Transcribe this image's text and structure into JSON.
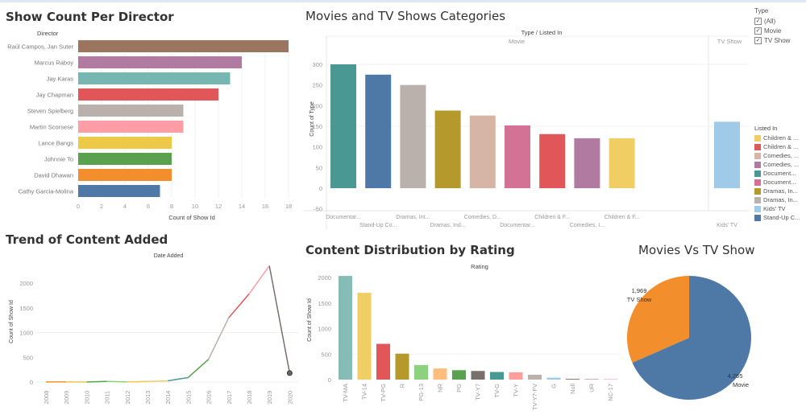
{
  "titles": {
    "director": "Show Count Per Director",
    "categories": "Movies and TV Shows Categories",
    "trend": "Trend of Content Added",
    "rating": "Content Distribution by Rating",
    "pie": "Movies Vs TV Show"
  },
  "type_filter": {
    "label": "Type",
    "options": [
      {
        "label": "(All)",
        "checked": true
      },
      {
        "label": "Movie",
        "checked": true
      },
      {
        "label": "TV Show",
        "checked": true
      }
    ]
  },
  "listed_in_legend": {
    "label": "Listed In",
    "items": [
      {
        "label": "Children & ...",
        "color": "#f1ce63"
      },
      {
        "label": "Children & ...",
        "color": "#e15759"
      },
      {
        "label": "Comedies, ...",
        "color": "#d7b5a6"
      },
      {
        "label": "Comedies, ...",
        "color": "#b07aa1"
      },
      {
        "label": "Document...",
        "color": "#499894"
      },
      {
        "label": "Document...",
        "color": "#d37295"
      },
      {
        "label": "Dramas, In...",
        "color": "#b6992d"
      },
      {
        "label": "Dramas, In...",
        "color": "#bab0ac"
      },
      {
        "label": "Kids' TV",
        "color": "#a0cbe8"
      },
      {
        "label": "Stand-Up C...",
        "color": "#4e79a7"
      }
    ]
  },
  "chart_data": [
    {
      "type": "bar",
      "orientation": "horizontal",
      "title": "Show Count Per Director",
      "ylabel": "Director",
      "xlabel": "Count of Show Id",
      "xlim": [
        0,
        18
      ],
      "xticks": [
        "0",
        "2",
        "4",
        "6",
        "8",
        "10",
        "12",
        "14",
        "16",
        "18"
      ],
      "categories": [
        "Raúl Campos, Jan Suter",
        "Marcus Raboy",
        "Jay Karas",
        "Jay Chapman",
        "Steven Spielberg",
        "Martin Scorsese",
        "Lance Bangs",
        "Johnnie To",
        "David Dhawan",
        "Cathy Garcia-Molina"
      ],
      "values": [
        18,
        14,
        13,
        12,
        9,
        9,
        8,
        8,
        8,
        7
      ],
      "colors": [
        "#9c755f",
        "#b07aa1",
        "#76b7b2",
        "#e15759",
        "#bab0ac",
        "#ff9da7",
        "#edc948",
        "#59a14f",
        "#f28e2b",
        "#4e79a7"
      ]
    },
    {
      "type": "bar",
      "title": "Movies and TV Shows Categories",
      "header": "Type / Listed In",
      "groups": [
        {
          "name": "Movie",
          "count": 9
        },
        {
          "name": "TV Show",
          "count": 1
        }
      ],
      "ylabel": "Count of Type",
      "ylim": [
        -50,
        300
      ],
      "yticks": [
        "300",
        "250",
        "200",
        "150",
        "100",
        "50",
        "0",
        "-50"
      ],
      "categories": [
        "Documentar...",
        "Stand-Up Co...",
        "Dramas, Int...",
        "Dramas, Ind...",
        "Comedies, D...",
        "Documentar...",
        "Children & F...",
        "Comedies, I...",
        "Children & F...",
        "Kids' TV"
      ],
      "values": [
        300,
        275,
        250,
        188,
        176,
        152,
        131,
        121,
        121,
        161
      ],
      "colors": [
        "#499894",
        "#4e79a7",
        "#bab0ac",
        "#b6992d",
        "#d7b5a6",
        "#d37295",
        "#e15759",
        "#b07aa1",
        "#f1ce63",
        "#a0cbe8"
      ]
    },
    {
      "type": "line",
      "title": "Trend of Content Added",
      "header": "Date Added",
      "ylabel": "Count of Show Id",
      "ylim": [
        0,
        2400
      ],
      "yticks": [
        "2000",
        "1500",
        "1000",
        "500",
        "0"
      ],
      "x": [
        "2008",
        "2009",
        "2010",
        "2011",
        "2012",
        "2013",
        "2014",
        "2015",
        "2016",
        "2017",
        "2018",
        "2019",
        "2020"
      ],
      "values": [
        2,
        2,
        1,
        13,
        3,
        11,
        25,
        90,
        456,
        1300,
        1780,
        2350,
        180
      ]
    },
    {
      "type": "bar",
      "title": "Content Distribution by Rating",
      "header": "Rating",
      "ylabel": "Count of Show Id",
      "ylim": [
        0,
        2000
      ],
      "yticks": [
        "2000",
        "1500",
        "1000",
        "500",
        "0"
      ],
      "categories": [
        "TV-MA",
        "TV-14",
        "TV-PG",
        "R",
        "PG-13",
        "NR",
        "PG",
        "TV-Y7",
        "TV-G",
        "TV-Y",
        "TV-Y7-FV",
        "G",
        "Null",
        "UR",
        "NC-17"
      ],
      "values": [
        2030,
        1700,
        700,
        508,
        286,
        218,
        184,
        169,
        149,
        143,
        95,
        37,
        7,
        7,
        2
      ],
      "colors": [
        "#86bcb6",
        "#f1ce63",
        "#e15759",
        "#b6992d",
        "#8cd17d",
        "#ffbe7d",
        "#59a14f",
        "#79706e",
        "#499894",
        "#ff9d9a",
        "#bab0ac",
        "#a0cbe8",
        "#9d7660",
        "#d4a6c8",
        "#fabfd2"
      ]
    },
    {
      "type": "pie",
      "title": "Movies Vs TV Show",
      "labels": [
        "Movie",
        "TV Show"
      ],
      "value_labels": [
        "4,265",
        "1,969"
      ],
      "values": [
        4265,
        1969
      ],
      "colors": [
        "#4e79a7",
        "#f28e2b"
      ]
    }
  ]
}
